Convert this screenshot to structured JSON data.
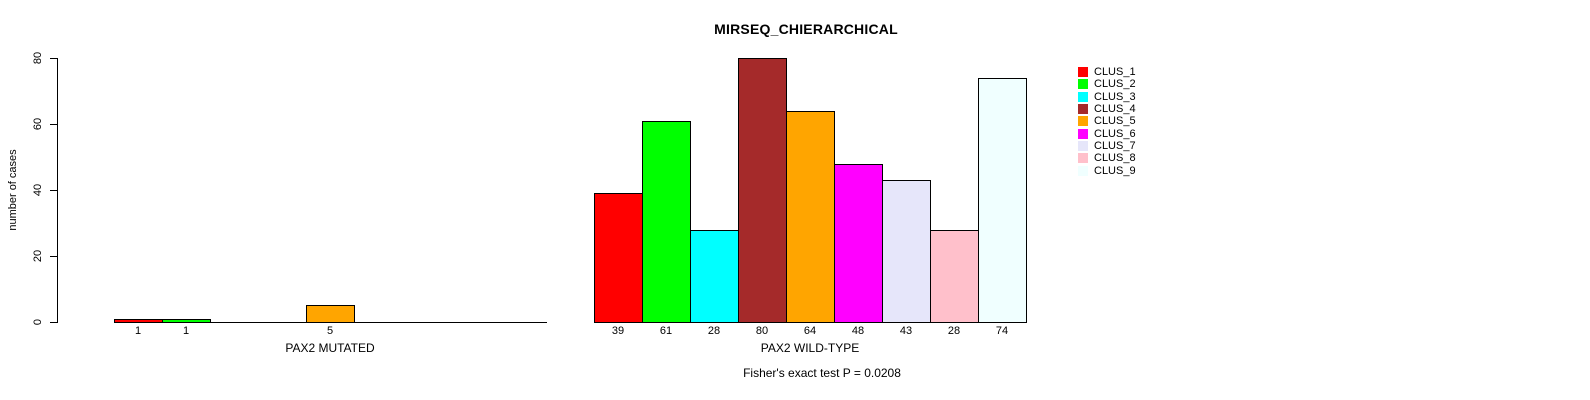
{
  "chart_data": {
    "type": "bar",
    "title": "MIRSEQ_CHIERARCHICAL",
    "ylabel": "number of cases",
    "xlabel": "",
    "ylim": [
      0,
      80
    ],
    "yticks": [
      0,
      20,
      40,
      60,
      80
    ],
    "grid": false,
    "legend_position": "right",
    "bar_labels": true,
    "categories": [
      "PAX2 MUTATED",
      "PAX2 WILD-TYPE"
    ],
    "series": [
      {
        "name": "CLUS_1",
        "color": "#FF0000",
        "values": [
          1,
          39
        ]
      },
      {
        "name": "CLUS_2",
        "color": "#00FF00",
        "values": [
          1,
          61
        ]
      },
      {
        "name": "CLUS_3",
        "color": "#00FFFF",
        "values": [
          0,
          28
        ]
      },
      {
        "name": "CLUS_4",
        "color": "#A52A2A",
        "values": [
          0,
          80
        ]
      },
      {
        "name": "CLUS_5",
        "color": "#FFA500",
        "values": [
          5,
          64
        ]
      },
      {
        "name": "CLUS_6",
        "color": "#FF00FF",
        "values": [
          0,
          48
        ]
      },
      {
        "name": "CLUS_7",
        "color": "#E6E6FA",
        "values": [
          0,
          43
        ]
      },
      {
        "name": "CLUS_8",
        "color": "#FFC0CB",
        "values": [
          0,
          28
        ]
      },
      {
        "name": "CLUS_9",
        "color": "#F0FFFF",
        "values": [
          0,
          74
        ]
      }
    ],
    "annotation": "Fisher's exact test P = 0.0208"
  },
  "colors": {
    "foreground": "#000000",
    "background": "#FFFFFF"
  }
}
